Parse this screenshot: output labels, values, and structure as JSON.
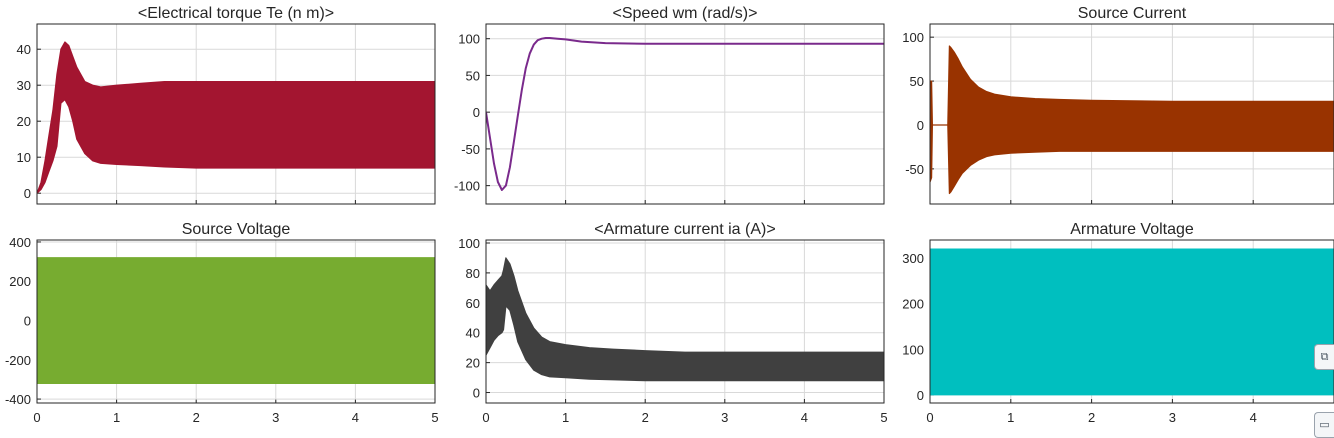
{
  "chart_data": [
    {
      "id": "torque",
      "type": "area",
      "title": "<Electrical torque Te (n m)>",
      "xlim": [
        0,
        5
      ],
      "ylim": [
        -3,
        47
      ],
      "yticks": [
        0,
        10,
        20,
        30,
        40
      ],
      "xticks": [
        0,
        1,
        2,
        3,
        4,
        5
      ],
      "show_xtick_labels": false,
      "grid": true,
      "color": "#a31530",
      "series": [
        {
          "x": [
            0,
            0.05,
            0.1,
            0.15,
            0.2,
            0.25,
            0.3,
            0.35,
            0.4,
            0.45,
            0.5,
            0.6,
            0.7,
            0.8,
            1.0,
            1.3,
            1.6,
            2.0,
            2.5,
            3.0,
            4.0,
            5.0
          ],
          "upper": [
            0,
            3,
            9,
            16,
            23,
            33,
            40,
            42,
            41,
            38,
            35,
            31,
            30,
            29.5,
            30,
            30.5,
            31,
            31,
            31,
            31,
            31,
            31
          ],
          "lower": [
            0,
            1,
            3,
            6,
            9,
            13,
            25,
            26,
            24,
            20,
            15,
            11,
            9,
            8.3,
            8,
            7.7,
            7.3,
            7,
            7,
            7,
            7,
            7
          ]
        }
      ]
    },
    {
      "id": "speed",
      "type": "line",
      "title": "<Speed wm (rad/s)>",
      "xlim": [
        0,
        5
      ],
      "ylim": [
        -125,
        120
      ],
      "yticks": [
        -100,
        -50,
        0,
        50,
        100
      ],
      "xticks": [
        0,
        1,
        2,
        3,
        4,
        5
      ],
      "show_xtick_labels": false,
      "grid": true,
      "color": "#7a2a8c",
      "series": [
        {
          "x": [
            0,
            0.05,
            0.1,
            0.15,
            0.2,
            0.25,
            0.3,
            0.35,
            0.4,
            0.45,
            0.5,
            0.55,
            0.6,
            0.65,
            0.7,
            0.75,
            0.8,
            0.9,
            1.0,
            1.2,
            1.5,
            2.0,
            2.5,
            3.0,
            4.0,
            5.0
          ],
          "y": [
            0,
            -35,
            -70,
            -95,
            -106,
            -100,
            -75,
            -40,
            -5,
            30,
            60,
            80,
            92,
            98,
            100,
            101,
            101,
            100,
            99,
            96,
            94,
            93,
            93,
            93,
            93,
            93
          ]
        }
      ]
    },
    {
      "id": "source_current",
      "type": "area",
      "title": "Source Current",
      "xlim": [
        0,
        5
      ],
      "ylim": [
        -90,
        115
      ],
      "yticks": [
        -50,
        0,
        50,
        100
      ],
      "xticks": [
        0,
        1,
        2,
        3,
        4,
        5
      ],
      "show_xtick_labels": false,
      "grid": true,
      "color": "#993300",
      "series": [
        {
          "x": [
            0,
            0.02,
            0.03,
            0.2,
            0.22,
            0.24,
            0.26,
            0.3,
            0.35,
            0.4,
            0.5,
            0.6,
            0.7,
            0.8,
            1.0,
            1.3,
            1.6,
            2.0,
            3.0,
            4.0,
            5.0
          ],
          "upper": [
            50,
            50,
            0,
            0,
            0,
            90,
            88,
            83,
            75,
            66,
            52,
            43,
            38,
            35,
            32,
            30,
            29,
            28,
            27,
            27,
            27
          ],
          "lower": [
            -65,
            -60,
            0,
            0,
            0,
            -78,
            -76,
            -70,
            -62,
            -55,
            -46,
            -40,
            -36,
            -34,
            -32,
            -31,
            -30,
            -30,
            -30,
            -30,
            -30
          ]
        }
      ]
    },
    {
      "id": "source_voltage",
      "type": "area",
      "title": "Source Voltage",
      "xlim": [
        0,
        5
      ],
      "ylim": [
        -420,
        410
      ],
      "yticks": [
        -400,
        -200,
        0,
        200,
        400
      ],
      "xticks": [
        0,
        1,
        2,
        3,
        4,
        5
      ],
      "show_xtick_labels": true,
      "grid": true,
      "color": "#77ac30",
      "series": [
        {
          "x": [
            0,
            5
          ],
          "upper": [
            320,
            320
          ],
          "lower": [
            -320,
            -320
          ]
        }
      ]
    },
    {
      "id": "armature_current",
      "type": "area",
      "title": "<Armature current ia (A)>",
      "xlim": [
        0,
        5
      ],
      "ylim": [
        -7,
        102
      ],
      "yticks": [
        0,
        20,
        40,
        60,
        80,
        100
      ],
      "xticks": [
        0,
        1,
        2,
        3,
        4,
        5
      ],
      "show_xtick_labels": true,
      "grid": true,
      "color": "#404040",
      "series": [
        {
          "x": [
            0,
            0.05,
            0.1,
            0.15,
            0.2,
            0.22,
            0.25,
            0.3,
            0.35,
            0.4,
            0.5,
            0.6,
            0.7,
            0.8,
            1.0,
            1.3,
            1.6,
            2.0,
            2.5,
            3.0,
            4.0,
            5.0
          ],
          "upper": [
            72,
            68,
            72,
            75,
            78,
            82,
            90,
            86,
            78,
            68,
            53,
            43,
            37,
            34,
            32,
            30,
            29,
            28,
            27,
            27,
            27,
            27
          ],
          "lower": [
            25,
            30,
            35,
            38,
            40,
            42,
            58,
            55,
            45,
            34,
            22,
            15,
            12,
            10.5,
            10,
            9,
            8.5,
            8,
            8,
            8,
            8,
            8
          ]
        }
      ]
    },
    {
      "id": "armature_voltage",
      "type": "area",
      "title": "Armature Voltage",
      "xlim": [
        0,
        5
      ],
      "ylim": [
        -18,
        340
      ],
      "yticks": [
        0,
        100,
        200,
        300
      ],
      "xticks": [
        0,
        1,
        2,
        3,
        4,
        5
      ],
      "show_xtick_labels": true,
      "grid": true,
      "color": "#00bfbf",
      "series": [
        {
          "x": [
            0,
            5
          ],
          "upper": [
            320,
            320
          ],
          "lower": [
            0,
            0
          ]
        }
      ]
    }
  ],
  "side_toolbar": {
    "icon_top": "copy-icon",
    "icon_bottom": "window-icon",
    "glyph_top": "⧉",
    "glyph_bottom": "▭"
  }
}
